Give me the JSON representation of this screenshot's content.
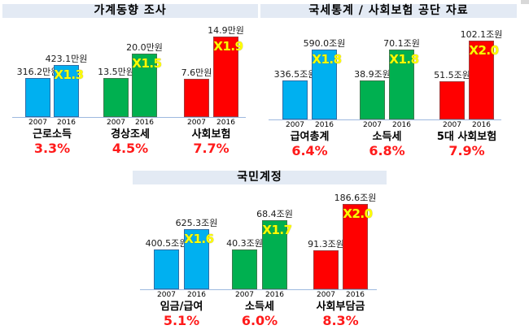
{
  "colors": {
    "blue": "#00B0F0",
    "green": "#00B050",
    "red": "#FF0000",
    "multiplier": "#FFFF00",
    "rate": "#FF1A1A",
    "header_bg": "#E3EAF4"
  },
  "sections": [
    {
      "title": "가계동향 조사",
      "groups": [
        {
          "name": "근로소득",
          "rate": "3.3%",
          "color": "blue",
          "bars": [
            {
              "year": "2007",
              "label": "316.2만원",
              "value": 316.2
            },
            {
              "year": "2016",
              "label": "423.1만원",
              "value": 423.1
            }
          ],
          "multiplier": "X1.3"
        },
        {
          "name": "경상조세",
          "rate": "4.5%",
          "color": "green",
          "bars": [
            {
              "year": "2007",
              "label": "13.5만원",
              "value": 13.5
            },
            {
              "year": "2016",
              "label": "20.0만원",
              "value": 20.0
            }
          ],
          "multiplier": "X1.5"
        },
        {
          "name": "사회보험",
          "rate": "7.7%",
          "color": "red",
          "bars": [
            {
              "year": "2007",
              "label": "7.6만원",
              "value": 7.6
            },
            {
              "year": "2016",
              "label": "14.9만원",
              "value": 14.9
            }
          ],
          "multiplier": "X1.9"
        }
      ]
    },
    {
      "title": "국세통계 / 사회보험 공단 자료",
      "groups": [
        {
          "name": "급여총계",
          "rate": "6.4%",
          "color": "blue",
          "bars": [
            {
              "year": "2007",
              "label": "336.5조원",
              "value": 336.5
            },
            {
              "year": "2016",
              "label": "590.0조원",
              "value": 590.0
            }
          ],
          "multiplier": "X1.8"
        },
        {
          "name": "소득세",
          "rate": "6.8%",
          "color": "green",
          "bars": [
            {
              "year": "2007",
              "label": "38.9조원",
              "value": 38.9
            },
            {
              "year": "2016",
              "label": "70.1조원",
              "value": 70.1
            }
          ],
          "multiplier": "X1.8"
        },
        {
          "name": "5대 사회보험",
          "rate": "7.9%",
          "color": "red",
          "bars": [
            {
              "year": "2007",
              "label": "51.5조원",
              "value": 51.5
            },
            {
              "year": "2016",
              "label": "102.1조원",
              "value": 102.1
            }
          ],
          "multiplier": "X2.0"
        }
      ]
    },
    {
      "title": "국민계정",
      "groups": [
        {
          "name": "임금/급여",
          "rate": "5.1%",
          "color": "blue",
          "bars": [
            {
              "year": "2007",
              "label": "400.5조원",
              "value": 400.5
            },
            {
              "year": "2016",
              "label": "625.3조원",
              "value": 625.3
            }
          ],
          "multiplier": "X1.6"
        },
        {
          "name": "소득세",
          "rate": "6.0%",
          "color": "green",
          "bars": [
            {
              "year": "2007",
              "label": "40.3조원",
              "value": 40.3
            },
            {
              "year": "2016",
              "label": "68.4조원",
              "value": 68.4
            }
          ],
          "multiplier": "X1.7"
        },
        {
          "name": "사회부담금",
          "rate": "8.3%",
          "color": "red",
          "bars": [
            {
              "year": "2007",
              "label": "91.3조원",
              "value": 91.3
            },
            {
              "year": "2016",
              "label": "186.6조원",
              "value": 186.6
            }
          ],
          "multiplier": "X2.0"
        }
      ]
    }
  ],
  "chart_data": [
    {
      "type": "bar",
      "title": "가계동향 조사",
      "categories": [
        "근로소득",
        "경상조세",
        "사회보험"
      ],
      "series": [
        {
          "name": "2007",
          "values": [
            316.2,
            13.5,
            7.6
          ]
        },
        {
          "name": "2016",
          "values": [
            423.1,
            20.0,
            14.9
          ]
        }
      ],
      "units": "만원",
      "multipliers": [
        "X1.3",
        "X1.5",
        "X1.9"
      ],
      "annual_growth": [
        "3.3%",
        "4.5%",
        "7.7%"
      ],
      "xlabel": "",
      "ylabel": "",
      "grid": false,
      "legend": "none"
    },
    {
      "type": "bar",
      "title": "국세통계 / 사회보험 공단 자료",
      "categories": [
        "급여총계",
        "소득세",
        "5대 사회보험"
      ],
      "series": [
        {
          "name": "2007",
          "values": [
            336.5,
            38.9,
            51.5
          ]
        },
        {
          "name": "2016",
          "values": [
            590.0,
            70.1,
            102.1
          ]
        }
      ],
      "units": "조원",
      "multipliers": [
        "X1.8",
        "X1.8",
        "X2.0"
      ],
      "annual_growth": [
        "6.4%",
        "6.8%",
        "7.9%"
      ],
      "xlabel": "",
      "ylabel": "",
      "grid": false,
      "legend": "none"
    },
    {
      "type": "bar",
      "title": "국민계정",
      "categories": [
        "임금/급여",
        "소득세",
        "사회부담금"
      ],
      "series": [
        {
          "name": "2007",
          "values": [
            400.5,
            40.3,
            91.3
          ]
        },
        {
          "name": "2016",
          "values": [
            625.3,
            68.4,
            186.6
          ]
        }
      ],
      "units": "조원",
      "multipliers": [
        "X1.6",
        "X1.7",
        "X2.0"
      ],
      "annual_growth": [
        "5.1%",
        "6.0%",
        "8.3%"
      ],
      "xlabel": "",
      "ylabel": "",
      "grid": false,
      "legend": "none"
    }
  ]
}
